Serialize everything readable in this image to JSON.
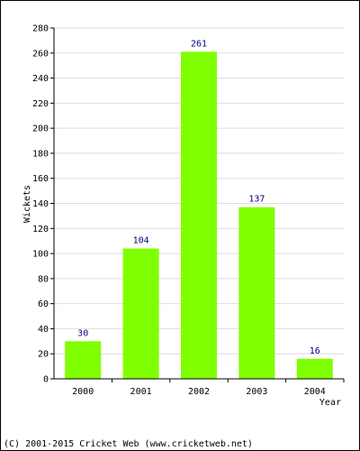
{
  "chart_data": {
    "type": "bar",
    "categories": [
      "2000",
      "2001",
      "2002",
      "2003",
      "2004"
    ],
    "values": [
      30,
      104,
      261,
      137,
      16
    ],
    "title": "",
    "xlabel": "Year",
    "ylabel": "Wickets",
    "ylim": [
      0,
      280
    ],
    "y_ticks": [
      0,
      20,
      40,
      60,
      80,
      100,
      120,
      140,
      160,
      180,
      200,
      220,
      240,
      260,
      280
    ],
    "grid": true,
    "data_labels": true
  },
  "colors": {
    "bar": "#80ff00",
    "data_label": "#000080",
    "grid": "#dddddd",
    "axis": "#000000"
  },
  "footer": {
    "text": "(C) 2001-2015 Cricket Web (www.cricketweb.net)"
  }
}
